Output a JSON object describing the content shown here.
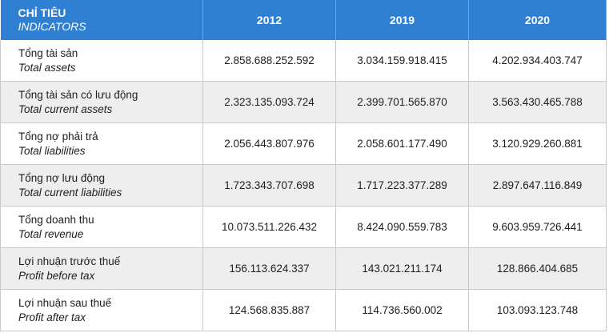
{
  "header": {
    "label_vi": "CHỈ TIÊU",
    "label_en": "INDICATORS",
    "years": [
      "2012",
      "2019",
      "2020"
    ]
  },
  "rows": [
    {
      "vi": "Tổng tài sản",
      "en": "Total assets",
      "values": [
        "2.858.688.252.592",
        "3.034.159.918.415",
        "4.202.934.403.747"
      ]
    },
    {
      "vi": "Tổng tài sản có lưu động",
      "en": "Total current assets",
      "values": [
        "2.323.135.093.724",
        "2.399.701.565.870",
        "3.563.430.465.788"
      ]
    },
    {
      "vi": "Tổng nợ phải trả",
      "en": "Total liabilities",
      "values": [
        "2.056.443.807.976",
        "2.058.601.177.490",
        "3.120.929.260.881"
      ]
    },
    {
      "vi": "Tổng nợ lưu động",
      "en": "Total current liabilities",
      "values": [
        "1.723.343.707.698",
        "1.717.223.377.289",
        "2.897.647.116.849"
      ]
    },
    {
      "vi": "Tổng doanh thu",
      "en": "Total revenue",
      "values": [
        "10.073.511.226.432",
        "8.424.090.559.783",
        "9.603.959.726.441"
      ]
    },
    {
      "vi": "Lợi nhuận trước thuế",
      "en": "Profit before tax",
      "values": [
        "156.113.624.337",
        "143.021.211.174",
        "128.866.404.685"
      ]
    },
    {
      "vi": "Lợi nhuận sau thuế",
      "en": "Profit after tax",
      "values": [
        "124.568.835.887",
        "114.736.560.002",
        "103.093.123.748"
      ]
    }
  ],
  "colors": {
    "header_bg": "#2f7fd2",
    "stripe": "#eeeeee"
  }
}
